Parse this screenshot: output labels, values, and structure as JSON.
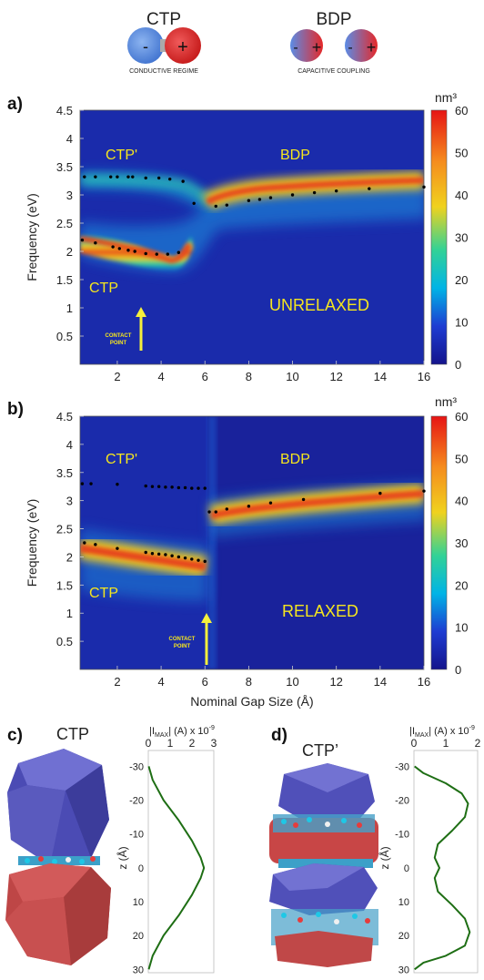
{
  "header": {
    "ctp_title": "CTP",
    "ctp_caption": "CONDUCTIVE REGIME",
    "bdp_title": "BDP",
    "bdp_caption": "CAPACITIVE COUPLING",
    "minus": "-",
    "plus": "+"
  },
  "panels": {
    "a": {
      "letter": "a)",
      "unit": "nm³",
      "label_ctp_prime": "CTP'",
      "label_bdp": "BDP",
      "label_ctp": "CTP",
      "regime": "UNRELAXED",
      "arrow_text": [
        "CONTACT",
        "POINT"
      ]
    },
    "b": {
      "letter": "b)",
      "unit": "nm³",
      "label_ctp_prime": "CTP'",
      "label_bdp": "BDP",
      "label_ctp": "CTP",
      "regime": "RELAXED",
      "arrow_text": [
        "CONTACT",
        "POINT"
      ]
    },
    "c": {
      "letter": "c)",
      "title": "CTP",
      "xlabel": "|I",
      "xlabel_sub": "MAX",
      "xlabel_rest": "| (A) x 10",
      "xlabel_sup": "-9",
      "ylabel": "z (Å)"
    },
    "d": {
      "letter": "d)",
      "title": "CTP’",
      "xlabel": "|I",
      "xlabel_sub": "MAX",
      "xlabel_rest": "| (A) x 10",
      "xlabel_sup": "-9",
      "ylabel": "z (Å)"
    }
  },
  "colors": {
    "heat_low": "#14148c",
    "heat_mid": "#00c8e6",
    "heat_high": "#e61e14",
    "label_yellow": "#f5e61e",
    "curve_green": "#1e6e14",
    "nano_blue": "#5a5ac8",
    "nano_red": "#c84646"
  },
  "chart_data": [
    {
      "type": "heatmap",
      "panel": "a",
      "xlabel": "",
      "ylabel": "Frequency (eV)",
      "xlim": [
        0.3,
        16
      ],
      "ylim": [
        0,
        4.5
      ],
      "x_ticks": [
        2,
        4,
        6,
        8,
        10,
        12,
        14,
        16
      ],
      "y_ticks": [
        0.5,
        1,
        1.5,
        2,
        2.5,
        3,
        3.5,
        4,
        4.5
      ],
      "colorbar": {
        "label": "nm³",
        "range": [
          0,
          60
        ],
        "ticks": [
          0,
          10,
          20,
          30,
          40,
          50,
          60
        ]
      },
      "series": [
        {
          "name": "CTP",
          "points": [
            [
              0.4,
              2.2
            ],
            [
              1.0,
              2.15
            ],
            [
              1.8,
              2.08
            ],
            [
              2.1,
              2.05
            ],
            [
              2.5,
              2.02
            ],
            [
              2.8,
              2.0
            ],
            [
              3.3,
              1.96
            ],
            [
              3.8,
              1.95
            ],
            [
              4.3,
              1.95
            ],
            [
              4.8,
              1.98
            ]
          ]
        },
        {
          "name": "CTP'",
          "points": [
            [
              0.5,
              3.32
            ],
            [
              1.0,
              3.32
            ],
            [
              1.7,
              3.32
            ],
            [
              2.0,
              3.32
            ],
            [
              2.5,
              3.32
            ],
            [
              2.7,
              3.32
            ],
            [
              3.3,
              3.3
            ],
            [
              3.9,
              3.3
            ],
            [
              4.4,
              3.28
            ],
            [
              5.0,
              3.24
            ]
          ]
        },
        {
          "name": "BDP",
          "points": [
            [
              5.5,
              2.85
            ],
            [
              6.5,
              2.8
            ],
            [
              7.0,
              2.82
            ],
            [
              8.0,
              2.9
            ],
            [
              8.5,
              2.92
            ],
            [
              9.0,
              2.95
            ],
            [
              10.0,
              3.0
            ],
            [
              11.0,
              3.04
            ],
            [
              12.0,
              3.07
            ],
            [
              13.5,
              3.11
            ],
            [
              16.0,
              3.14
            ]
          ]
        }
      ]
    },
    {
      "type": "heatmap",
      "panel": "b",
      "xlabel": "Nominal Gap Size (Å)",
      "ylabel": "Frequency (eV)",
      "xlim": [
        0.3,
        16
      ],
      "ylim": [
        0,
        4.5
      ],
      "x_ticks": [
        2,
        4,
        6,
        8,
        10,
        12,
        14,
        16
      ],
      "y_ticks": [
        0.5,
        1,
        1.5,
        2,
        2.5,
        3,
        3.5,
        4,
        4.5
      ],
      "colorbar": {
        "label": "nm³",
        "range": [
          0,
          60
        ],
        "ticks": [
          0,
          10,
          20,
          30,
          40,
          50,
          60
        ]
      },
      "series": [
        {
          "name": "CTP",
          "points": [
            [
              0.5,
              2.25
            ],
            [
              1.0,
              2.22
            ],
            [
              2.0,
              2.15
            ],
            [
              3.3,
              2.08
            ],
            [
              3.6,
              2.06
            ],
            [
              3.9,
              2.05
            ],
            [
              4.2,
              2.04
            ],
            [
              4.5,
              2.02
            ],
            [
              4.8,
              2.0
            ],
            [
              5.1,
              1.98
            ],
            [
              5.4,
              1.96
            ],
            [
              5.7,
              1.94
            ],
            [
              6.0,
              1.92
            ]
          ]
        },
        {
          "name": "CTP'",
          "points": [
            [
              0.4,
              3.3
            ],
            [
              0.8,
              3.3
            ],
            [
              2.0,
              3.29
            ],
            [
              3.3,
              3.26
            ],
            [
              3.6,
              3.25
            ],
            [
              3.9,
              3.25
            ],
            [
              4.2,
              3.24
            ],
            [
              4.5,
              3.24
            ],
            [
              4.8,
              3.23
            ],
            [
              5.1,
              3.23
            ],
            [
              5.4,
              3.22
            ],
            [
              5.7,
              3.22
            ],
            [
              6.0,
              3.22
            ]
          ]
        },
        {
          "name": "BDP",
          "points": [
            [
              6.2,
              2.8
            ],
            [
              6.5,
              2.8
            ],
            [
              7.0,
              2.85
            ],
            [
              8.0,
              2.9
            ],
            [
              9.0,
              2.96
            ],
            [
              10.5,
              3.02
            ],
            [
              14.0,
              3.13
            ],
            [
              16.0,
              3.17
            ]
          ]
        }
      ]
    },
    {
      "type": "line",
      "panel": "c",
      "xlabel": "|IMAX| (A) x 10-9",
      "ylabel": "z (Å)",
      "xlim": [
        0,
        3
      ],
      "ylim": [
        -32,
        31
      ],
      "x_ticks": [
        0,
        1,
        2,
        3
      ],
      "y_ticks": [
        -30,
        -20,
        -10,
        0,
        10,
        20,
        30
      ],
      "series": [
        {
          "points": [
            [
              0.02,
              -30
            ],
            [
              0.2,
              -26
            ],
            [
              0.7,
              -20
            ],
            [
              1.4,
              -14
            ],
            [
              2.0,
              -8
            ],
            [
              2.4,
              -3
            ],
            [
              2.55,
              0
            ],
            [
              2.4,
              3
            ],
            [
              2.0,
              8
            ],
            [
              1.4,
              14
            ],
            [
              0.7,
              20
            ],
            [
              0.2,
              26
            ],
            [
              0.02,
              30
            ]
          ]
        }
      ]
    },
    {
      "type": "line",
      "panel": "d",
      "xlabel": "|IMAX| (A) x 10-9",
      "ylabel": "z (Å)",
      "xlim": [
        0,
        2
      ],
      "ylim": [
        -32,
        31
      ],
      "x_ticks": [
        0,
        1,
        2
      ],
      "y_ticks": [
        -30,
        -20,
        -10,
        0,
        10,
        20,
        30
      ],
      "series": [
        {
          "points": [
            [
              0.02,
              -30
            ],
            [
              0.3,
              -28
            ],
            [
              1.0,
              -25
            ],
            [
              1.5,
              -22
            ],
            [
              1.7,
              -19
            ],
            [
              1.6,
              -15
            ],
            [
              1.2,
              -11
            ],
            [
              0.75,
              -7
            ],
            [
              0.65,
              -3
            ],
            [
              0.8,
              0
            ],
            [
              0.65,
              3
            ],
            [
              0.75,
              7
            ],
            [
              1.2,
              11
            ],
            [
              1.6,
              15
            ],
            [
              1.75,
              19
            ],
            [
              1.6,
              23
            ],
            [
              1.0,
              26
            ],
            [
              0.3,
              28
            ],
            [
              0.02,
              30
            ]
          ]
        }
      ]
    }
  ]
}
